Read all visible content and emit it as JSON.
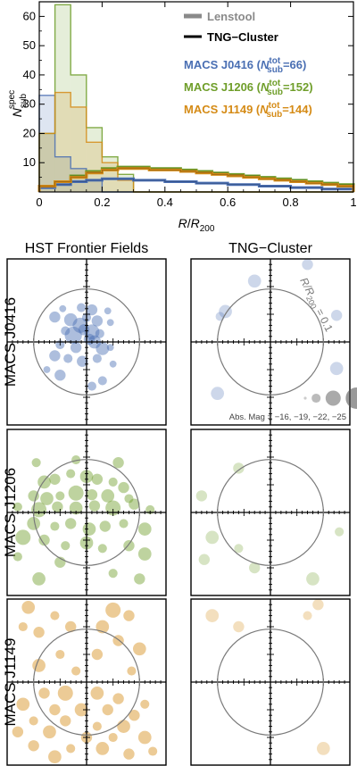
{
  "chart_data": [
    {
      "type": "line",
      "subtype": "histogram",
      "xlabel": "R/R200",
      "ylabel": "N_sub^spec",
      "xlim": [
        0,
        1
      ],
      "ylim": [
        0,
        65
      ],
      "x_ticks": [
        "0",
        "0.2",
        "0.4",
        "0.6",
        "0.8",
        "1"
      ],
      "y_ticks": [
        "0",
        "10",
        "20",
        "30",
        "40",
        "50",
        "60"
      ],
      "bin_edges": [
        0,
        0.05,
        0.1,
        0.15,
        0.2,
        0.25,
        0.3,
        0.35,
        0.4,
        0.45,
        0.5,
        0.55,
        0.6,
        0.65,
        0.7,
        0.75,
        0.8,
        0.85,
        0.9,
        0.95,
        1.0
      ],
      "legend": {
        "style_entries": [
          "Lenstool",
          "TNG−Cluster"
        ],
        "series_entries": [
          {
            "prefix": "MACS J0416 (",
            "n_label": "N",
            "sup": "tot",
            "sub": "sub",
            "suffix": "=66)",
            "color": "#4a6fb3"
          },
          {
            "prefix": "MACS J1206 (",
            "n_label": "N",
            "sup": "tot",
            "sub": "sub",
            "suffix": "=152)",
            "color": "#6f9e2a"
          },
          {
            "prefix": "MACS J1149 (",
            "n_label": "N",
            "sup": "tot",
            "sub": "sub",
            "suffix": "=144)",
            "color": "#d58b16"
          }
        ],
        "placement": "top-right"
      },
      "series": [
        {
          "name": "MACS J0416",
          "style": "Lenstool",
          "color": "#4a6fb3",
          "values": [
            33,
            12,
            8,
            4,
            0,
            0,
            0,
            0,
            0,
            0,
            0,
            0,
            0,
            0,
            0,
            0,
            0,
            0,
            0,
            0
          ]
        },
        {
          "name": "MACS J1206",
          "style": "Lenstool",
          "color": "#6f9e2a",
          "values": [
            20,
            64,
            40,
            22,
            12,
            6,
            0,
            0,
            0,
            0,
            0,
            0,
            0,
            0,
            0,
            0,
            0,
            0,
            0,
            0
          ]
        },
        {
          "name": "MACS J1149",
          "style": "Lenstool",
          "color": "#d58b16",
          "values": [
            20,
            34,
            29,
            17,
            10,
            4,
            0,
            0,
            0,
            0,
            0,
            0,
            0,
            0,
            0,
            0,
            0,
            0,
            0,
            0
          ]
        },
        {
          "name": "MACS J0416",
          "style": "TNG−Cluster",
          "color": "#4a6fb3",
          "values": [
            1.5,
            2.5,
            3.5,
            4.0,
            4.5,
            4.5,
            4.0,
            4.0,
            3.5,
            3.5,
            3.0,
            3.0,
            2.5,
            2.5,
            2.0,
            2.0,
            1.5,
            1.5,
            1.0,
            1.0
          ]
        },
        {
          "name": "MACS J1206",
          "style": "TNG−Cluster",
          "color": "#6f9e2a",
          "values": [
            2.0,
            3.5,
            5.5,
            7.0,
            8.0,
            8.5,
            8.5,
            8.0,
            8.0,
            7.5,
            7.0,
            6.5,
            6.0,
            5.5,
            5.0,
            4.5,
            4.0,
            3.5,
            3.0,
            2.5
          ]
        },
        {
          "name": "MACS J1149",
          "style": "TNG−Cluster",
          "color": "#d58b16",
          "values": [
            2.0,
            3.5,
            5.0,
            6.5,
            7.5,
            8.0,
            8.0,
            7.5,
            7.5,
            7.0,
            6.5,
            6.0,
            5.5,
            5.0,
            4.5,
            4.0,
            3.5,
            3.0,
            2.5,
            2.0
          ]
        }
      ]
    },
    {
      "type": "scatter",
      "layout": "grid 3x2",
      "column_titles": [
        "HST Frontier Fields",
        "TNG−Cluster"
      ],
      "row_titles": [
        "MACS J0416",
        "MACS J1206",
        "MACS J1149"
      ],
      "xlim": [
        -0.15,
        0.15
      ],
      "ylim": [
        -0.15,
        0.15
      ],
      "circle_label": {
        "lhs": "R/R",
        "sub": "200",
        "rhs": " = 0.1"
      },
      "circle_radius": 0.1,
      "size_legend": {
        "text": "Abs. Mag = −16, −19, −22, −25",
        "mags": [
          -16,
          -19,
          -22,
          -25
        ]
      },
      "panels": [
        {
          "row": 0,
          "col": 0,
          "color": "#4a6fb3",
          "points": [
            [
              -0.045,
              0.06,
              -18
            ],
            [
              -0.01,
              0.062,
              -19
            ],
            [
              0.01,
              0.058,
              -20
            ],
            [
              0.04,
              0.056,
              -18
            ],
            [
              -0.06,
              0.045,
              -20
            ],
            [
              -0.03,
              0.04,
              -21
            ],
            [
              0.0,
              0.044,
              -19
            ],
            [
              0.02,
              0.038,
              -20
            ],
            [
              -0.012,
              0.03,
              -22
            ],
            [
              -0.04,
              0.02,
              -19
            ],
            [
              -0.005,
              0.022,
              -20
            ],
            [
              0.01,
              0.018,
              -22
            ],
            [
              0.025,
              0.015,
              -19
            ],
            [
              -0.025,
              0.012,
              -23
            ],
            [
              0.005,
              0.005,
              -20
            ],
            [
              0.015,
              0.0,
              -21
            ],
            [
              -0.05,
              -0.005,
              -19
            ],
            [
              -0.02,
              -0.01,
              -20
            ],
            [
              0.03,
              -0.012,
              -21
            ],
            [
              0.045,
              -0.01,
              -18
            ],
            [
              -0.06,
              -0.025,
              -20
            ],
            [
              -0.035,
              -0.03,
              -19
            ],
            [
              -0.008,
              -0.035,
              -20
            ],
            [
              0.02,
              -0.03,
              -19
            ],
            [
              -0.075,
              -0.05,
              -18
            ],
            [
              0.05,
              -0.04,
              -18
            ],
            [
              -0.05,
              -0.06,
              -20
            ],
            [
              0.03,
              -0.07,
              -19
            ],
            [
              0.01,
              -0.08,
              -19
            ],
            [
              0.045,
              0.035,
              -18
            ]
          ]
        },
        {
          "row": 0,
          "col": 1,
          "color": "#4a6fb3",
          "points": [
            [
              0.07,
              0.14,
              -20
            ],
            [
              -0.085,
              0.055,
              -21
            ],
            [
              -0.095,
              0.046,
              -19
            ],
            [
              -0.03,
              0.11,
              -21
            ],
            [
              -0.1,
              -0.093,
              -21
            ],
            [
              0.125,
              -0.048,
              -21
            ],
            [
              0.125,
              0.048,
              -20
            ]
          ]
        },
        {
          "row": 1,
          "col": 0,
          "color": "#6f9e2a",
          "points": [
            [
              -0.095,
              0.09,
              -19
            ],
            [
              -0.08,
              0.055,
              -21
            ],
            [
              -0.06,
              0.06,
              -20
            ],
            [
              -0.03,
              0.07,
              -19
            ],
            [
              0.0,
              0.065,
              -21
            ],
            [
              0.02,
              0.06,
              -20
            ],
            [
              0.05,
              0.055,
              -19
            ],
            [
              0.07,
              0.045,
              -20
            ],
            [
              -0.1,
              0.03,
              -20
            ],
            [
              -0.075,
              0.025,
              -21
            ],
            [
              -0.05,
              0.03,
              -19
            ],
            [
              -0.02,
              0.035,
              -22
            ],
            [
              0.01,
              0.032,
              -20
            ],
            [
              0.04,
              0.03,
              -21
            ],
            [
              0.08,
              0.025,
              -19
            ],
            [
              -0.13,
              0.01,
              -19
            ],
            [
              -0.09,
              0.005,
              -22
            ],
            [
              -0.055,
              0.01,
              -20
            ],
            [
              -0.02,
              0.008,
              -21
            ],
            [
              0.015,
              0.012,
              -20
            ],
            [
              0.05,
              0.008,
              -22
            ],
            [
              0.09,
              0.015,
              -20
            ],
            [
              0.12,
              0.005,
              -19
            ],
            [
              -0.1,
              -0.02,
              -21
            ],
            [
              -0.06,
              -0.025,
              -19
            ],
            [
              -0.03,
              -0.02,
              -20
            ],
            [
              0.005,
              -0.03,
              -21
            ],
            [
              0.035,
              -0.025,
              -20
            ],
            [
              0.07,
              -0.02,
              -19
            ],
            [
              0.11,
              -0.03,
              -21
            ],
            [
              -0.12,
              -0.045,
              -22
            ],
            [
              -0.08,
              -0.05,
              -20
            ],
            [
              -0.04,
              -0.06,
              -19
            ],
            [
              0.0,
              -0.055,
              -21
            ],
            [
              0.03,
              -0.065,
              -19
            ],
            [
              0.08,
              -0.06,
              -20
            ],
            [
              0.11,
              -0.075,
              -21
            ],
            [
              -0.13,
              -0.08,
              -19
            ],
            [
              -0.05,
              -0.09,
              -20
            ],
            [
              0.05,
              -0.11,
              -19
            ],
            [
              -0.09,
              -0.12,
              -21
            ],
            [
              0.1,
              -0.12,
              -20
            ],
            [
              -0.02,
              0.095,
              -19
            ],
            [
              0.06,
              0.09,
              -20
            ]
          ]
        },
        {
          "row": 1,
          "col": 1,
          "color": "#6f9e2a",
          "points": [
            [
              -0.13,
              0.03,
              -20
            ],
            [
              -0.06,
              0.08,
              -20
            ],
            [
              -0.11,
              -0.045,
              -21
            ],
            [
              -0.06,
              -0.065,
              -19
            ],
            [
              -0.125,
              -0.085,
              -20
            ],
            [
              0.08,
              -0.12,
              -21
            ],
            [
              -0.03,
              -0.1,
              -20
            ],
            [
              0.13,
              -0.035,
              -19
            ]
          ]
        },
        {
          "row": 2,
          "col": 0,
          "color": "#d58b16",
          "points": [
            [
              -0.11,
              0.135,
              -21
            ],
            [
              -0.06,
              0.12,
              -19
            ],
            [
              0.05,
              0.13,
              -22
            ],
            [
              0.08,
              0.12,
              -20
            ],
            [
              -0.03,
              0.1,
              -20
            ],
            [
              0.03,
              0.1,
              -21
            ],
            [
              -0.09,
              0.09,
              -20
            ],
            [
              -0.12,
              0.1,
              -19
            ],
            [
              0.06,
              0.075,
              -20
            ],
            [
              0.1,
              0.06,
              -21
            ],
            [
              -0.05,
              0.05,
              -19
            ],
            [
              0.02,
              0.05,
              -20
            ],
            [
              -0.09,
              0.03,
              -21
            ],
            [
              0.085,
              0.02,
              -19
            ],
            [
              -0.04,
              -0.02,
              -22
            ],
            [
              0.02,
              -0.02,
              -21
            ],
            [
              -0.08,
              -0.02,
              -20
            ],
            [
              0.06,
              -0.03,
              -20
            ],
            [
              -0.12,
              -0.04,
              -21
            ],
            [
              0.11,
              -0.04,
              -19
            ],
            [
              -0.06,
              -0.05,
              -20
            ],
            [
              -0.01,
              -0.05,
              -21
            ],
            [
              0.04,
              -0.05,
              -20
            ],
            [
              0.09,
              -0.06,
              -20
            ],
            [
              -0.1,
              -0.07,
              -19
            ],
            [
              -0.04,
              -0.07,
              -20
            ],
            [
              0.02,
              -0.08,
              -19
            ],
            [
              0.07,
              -0.08,
              -21
            ],
            [
              -0.13,
              -0.09,
              -20
            ],
            [
              -0.07,
              -0.09,
              -21
            ],
            [
              0.0,
              -0.1,
              -20
            ],
            [
              0.05,
              -0.1,
              -19
            ],
            [
              0.11,
              -0.1,
              -21
            ],
            [
              -0.1,
              -0.115,
              -20
            ],
            [
              -0.03,
              -0.12,
              -19
            ],
            [
              0.03,
              -0.12,
              -21
            ],
            [
              0.08,
              -0.13,
              -20
            ],
            [
              -0.06,
              -0.135,
              -21
            ],
            [
              0.125,
              -0.125,
              -19
            ],
            [
              -0.02,
              0.02,
              -19
            ]
          ]
        },
        {
          "row": 2,
          "col": 1,
          "color": "#d58b16",
          "points": [
            [
              -0.11,
              0.12,
              -21
            ],
            [
              0.09,
              0.14,
              -20
            ],
            [
              0.07,
              0.12,
              -19
            ],
            [
              -0.06,
              0.1,
              -20
            ],
            [
              0.1,
              -0.12,
              -21
            ]
          ]
        }
      ]
    }
  ]
}
